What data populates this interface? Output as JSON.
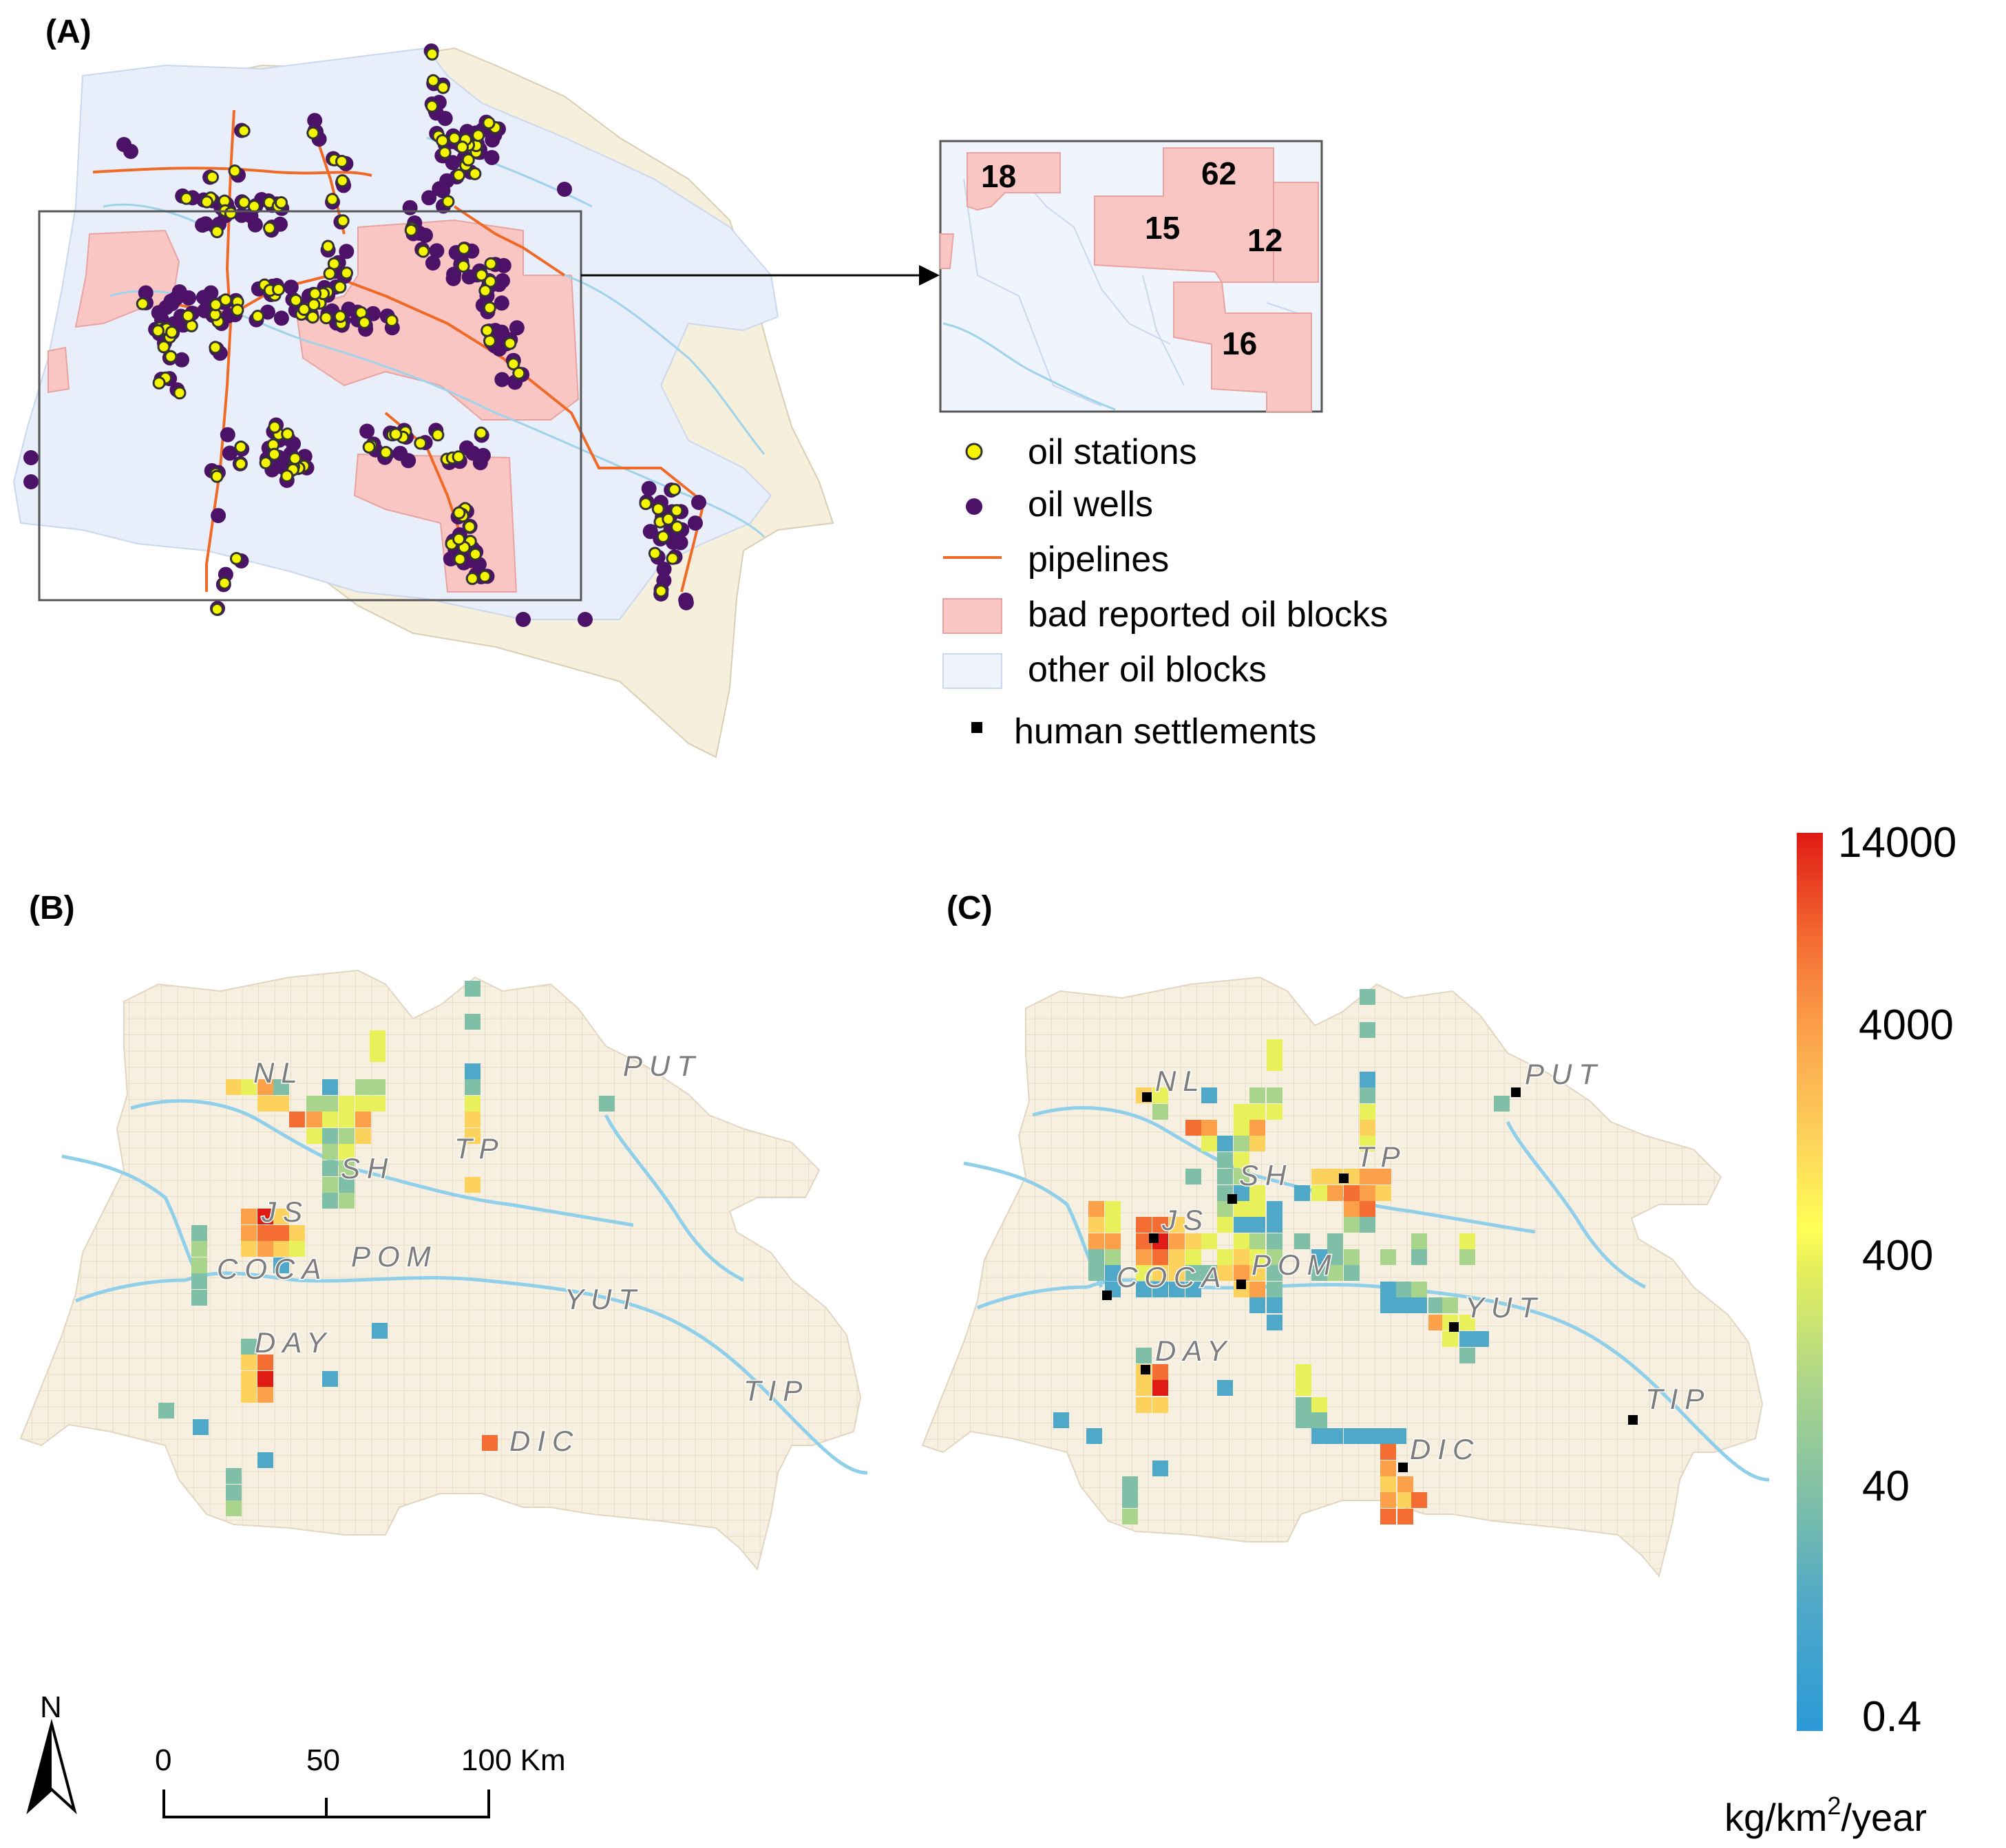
{
  "panels": {
    "a": {
      "label": "(A)"
    },
    "b": {
      "label": "(B)"
    },
    "c": {
      "label": "(C)"
    }
  },
  "inset": {
    "blocks": [
      {
        "id": "18",
        "label": "18"
      },
      {
        "id": "62",
        "label": "62"
      },
      {
        "id": "15",
        "label": "15"
      },
      {
        "id": "12",
        "label": "12"
      },
      {
        "id": "16",
        "label": "16"
      }
    ]
  },
  "legend": {
    "items": [
      {
        "key": "oil_stations",
        "label": "oil stations",
        "symbol": "yellow-dot",
        "color": "#f5f500"
      },
      {
        "key": "oil_wells",
        "label": "oil wells",
        "symbol": "purple-dot",
        "color": "#4b1268"
      },
      {
        "key": "pipelines",
        "label": "pipelines",
        "symbol": "orange-line",
        "color": "#ef6a26"
      },
      {
        "key": "bad_blocks",
        "label": "bad reported oil blocks",
        "symbol": "pink-box",
        "color": "#f9c6c4"
      },
      {
        "key": "other_blocks",
        "label": "other oil blocks",
        "symbol": "lightblue-box",
        "color": "#eaf0fb"
      },
      {
        "key": "settlements",
        "label": "human settlements",
        "symbol": "black-square",
        "color": "#000000"
      }
    ]
  },
  "places": {
    "b": [
      "NL",
      "PUT",
      "SH",
      "TP",
      "JS",
      "COCA",
      "POM",
      "YUT",
      "DAY",
      "TIP",
      "DIC"
    ],
    "c": [
      "NL",
      "PUT",
      "SH",
      "TP",
      "JS",
      "COCA",
      "POM",
      "YUT",
      "DAY",
      "TIP",
      "DIC"
    ]
  },
  "scale_bar": {
    "ticks": [
      "0",
      "50",
      "100 Km"
    ],
    "north": "N"
  },
  "colorbar": {
    "ticks": [
      "14000",
      "4000",
      "400",
      "40",
      "0.4"
    ],
    "unit_prefix": "kg/km",
    "unit_sup": "2",
    "unit_suffix": "/year",
    "colors": [
      "#d7191c",
      "#f46d43",
      "#fdae61",
      "#fee08b",
      "#ffff66",
      "#abdda4",
      "#66c2a5",
      "#3288bd",
      "#2b9ad6"
    ]
  },
  "colors": {
    "basin_fill": "#f7f0e1",
    "river": "#8fcfea",
    "station": "#f5f500",
    "well": "#4b1268",
    "pipeline": "#ef6a26"
  }
}
